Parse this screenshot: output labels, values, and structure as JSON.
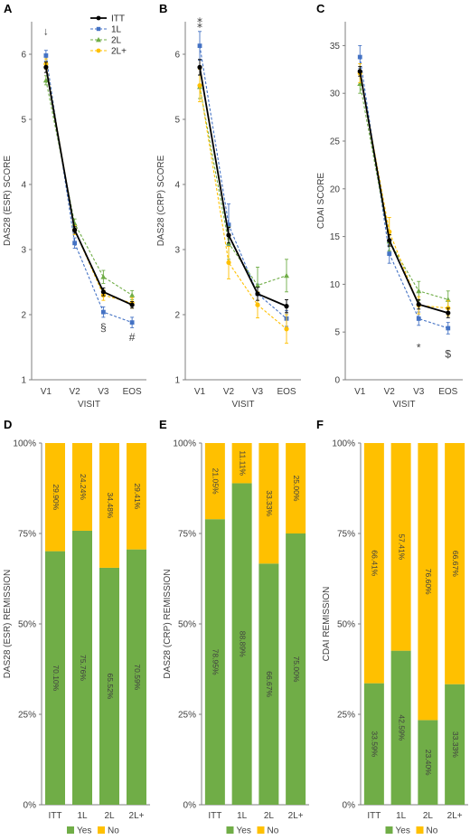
{
  "figure": {
    "panels_top": [
      "A",
      "B",
      "C"
    ],
    "panels_bottom": [
      "D",
      "E",
      "F"
    ]
  },
  "chart_data": [
    {
      "id": "A",
      "type": "line",
      "title": "",
      "xlabel": "VISIT",
      "ylabel": "DAS28 (ESR) SCORE",
      "categories": [
        "V1",
        "V2",
        "V3",
        "EOS"
      ],
      "ylim": [
        1,
        6.5
      ],
      "yticks": [
        "1",
        "2",
        "3",
        "4",
        "5",
        "6"
      ],
      "grid": false,
      "legend": "top-right",
      "series": [
        {
          "name": "ITT",
          "values": [
            5.8,
            3.3,
            2.35,
            2.15
          ],
          "err": [
            0.08,
            0.05,
            0.06,
            0.05
          ],
          "color": "#000000",
          "dash": "",
          "marker": "circle"
        },
        {
          "name": "1L",
          "values": [
            5.98,
            3.1,
            2.04,
            1.88
          ],
          "err": [
            0.08,
            0.08,
            0.08,
            0.08
          ],
          "color": "#4472C4",
          "dash": "3,2",
          "marker": "square"
        },
        {
          "name": "2L",
          "values": [
            5.6,
            3.4,
            2.58,
            2.3
          ],
          "err": [
            0.07,
            0.07,
            0.1,
            0.07
          ],
          "color": "#70AD47",
          "dash": "3,2",
          "marker": "triangle"
        },
        {
          "name": "2L+",
          "values": [
            5.85,
            3.3,
            2.3,
            2.18
          ],
          "err": [
            0.08,
            0.07,
            0.08,
            0.08
          ],
          "color": "#FFC000",
          "dash": "3,2",
          "marker": "circle"
        }
      ],
      "annotations": [
        {
          "text": "↓",
          "cat": 0,
          "y": 6.3
        },
        {
          "text": "§",
          "cat": 2,
          "y": 1.75
        },
        {
          "text": "#",
          "cat": 3,
          "y": 1.6
        }
      ]
    },
    {
      "id": "B",
      "type": "line",
      "title": "",
      "xlabel": "VISIT",
      "ylabel": "DAS28 (CRP) SCORE",
      "categories": [
        "V1",
        "V2",
        "V3",
        "EOS"
      ],
      "ylim": [
        1,
        6.5
      ],
      "yticks": [
        "1",
        "2",
        "3",
        "4",
        "5",
        "6"
      ],
      "grid": false,
      "series": [
        {
          "name": "ITT",
          "values": [
            5.8,
            3.22,
            2.32,
            2.13
          ],
          "err": [
            0.12,
            0.12,
            0.1,
            0.1
          ],
          "color": "#000000",
          "dash": "",
          "marker": "circle"
        },
        {
          "name": "1L",
          "values": [
            6.13,
            3.38,
            2.32,
            1.94
          ],
          "err": [
            0.22,
            0.32,
            0.15,
            0.12
          ],
          "color": "#4472C4",
          "dash": "3,2",
          "marker": "square"
        },
        {
          "name": "2L",
          "values": [
            5.5,
            3.1,
            2.45,
            2.6
          ],
          "err": [
            0.18,
            0.25,
            0.28,
            0.25
          ],
          "color": "#70AD47",
          "dash": "3,2",
          "marker": "triangle"
        },
        {
          "name": "2L+",
          "values": [
            5.52,
            2.8,
            2.15,
            1.78
          ],
          "err": [
            0.25,
            0.25,
            0.2,
            0.22
          ],
          "color": "#FFC000",
          "dash": "3,2",
          "marker": "circle"
        }
      ],
      "annotations": [
        {
          "text": "⁑",
          "cat": 0,
          "y": 6.4
        }
      ]
    },
    {
      "id": "C",
      "type": "line",
      "title": "",
      "xlabel": "VISIT",
      "ylabel": "CDAI SCORE",
      "categories": [
        "V1",
        "V2",
        "V3",
        "EOS"
      ],
      "ylim": [
        0,
        37.5
      ],
      "yticks": [
        "0",
        "5",
        "10",
        "15",
        "20",
        "25",
        "30",
        "35"
      ],
      "grid": false,
      "series": [
        {
          "name": "ITT",
          "values": [
            32.3,
            14.6,
            7.9,
            7.0
          ],
          "err": [
            0.5,
            0.6,
            0.5,
            0.5
          ],
          "color": "#000000",
          "dash": "",
          "marker": "circle"
        },
        {
          "name": "1L",
          "values": [
            33.8,
            13.2,
            6.4,
            5.4
          ],
          "err": [
            1.2,
            1.0,
            0.7,
            0.6
          ],
          "color": "#4472C4",
          "dash": "3,2",
          "marker": "square"
        },
        {
          "name": "2L",
          "values": [
            31.0,
            14.5,
            9.3,
            8.4
          ],
          "err": [
            1.0,
            1.0,
            1.0,
            0.9
          ],
          "color": "#70AD47",
          "dash": "3,2",
          "marker": "triangle"
        },
        {
          "name": "2L+",
          "values": [
            32.1,
            15.5,
            7.8,
            7.5
          ],
          "err": [
            1.0,
            1.5,
            0.9,
            0.8
          ],
          "color": "#FFC000",
          "dash": "3,2",
          "marker": "circle"
        }
      ],
      "annotations": [
        {
          "text": "*",
          "cat": 2,
          "y": 3.0
        },
        {
          "text": "$",
          "cat": 3,
          "y": 2.3
        }
      ]
    },
    {
      "id": "D",
      "type": "bar",
      "stacked": true,
      "xlabel": "",
      "ylabel": "DAS28 (ESR) REMISSION",
      "categories": [
        "ITT",
        "1L",
        "2L",
        "2L+"
      ],
      "yticks": [
        "0%",
        "25%",
        "50%",
        "75%",
        "100%"
      ],
      "legend": "bottom",
      "series": [
        {
          "name": "Yes",
          "color": "#70AD47",
          "values": [
            70.1,
            75.76,
            65.52,
            70.59
          ],
          "labels": [
            "70.10%",
            "75.76%",
            "65.52%",
            "70.59%"
          ]
        },
        {
          "name": "No",
          "color": "#FFC000",
          "values": [
            29.9,
            24.24,
            34.48,
            29.41
          ],
          "labels": [
            "29.90%",
            "24.24%",
            "34.48%",
            "29.41%"
          ]
        }
      ]
    },
    {
      "id": "E",
      "type": "bar",
      "stacked": true,
      "xlabel": "",
      "ylabel": "DAS28 (CRP) REMISSION",
      "categories": [
        "ITT",
        "1L",
        "2L",
        "2L+"
      ],
      "yticks": [
        "0%",
        "25%",
        "50%",
        "75%",
        "100%"
      ],
      "legend": "bottom",
      "series": [
        {
          "name": "Yes",
          "color": "#70AD47",
          "values": [
            78.95,
            88.89,
            66.67,
            75.0
          ],
          "labels": [
            "78.95%",
            "88.89%",
            "66.67%",
            "75.00%"
          ]
        },
        {
          "name": "No",
          "color": "#FFC000",
          "values": [
            21.05,
            11.11,
            33.33,
            25.0
          ],
          "labels": [
            "21.05%",
            "11.11%",
            "33.33%",
            "25.00%"
          ]
        }
      ]
    },
    {
      "id": "F",
      "type": "bar",
      "stacked": true,
      "xlabel": "",
      "ylabel": "CDAI REMISSION",
      "categories": [
        "ITT",
        "1L",
        "2L",
        "2L+"
      ],
      "yticks": [
        "0%",
        "25%",
        "50%",
        "75%",
        "100%"
      ],
      "legend": "bottom",
      "series": [
        {
          "name": "Yes",
          "color": "#70AD47",
          "values": [
            33.59,
            42.59,
            23.4,
            33.33
          ],
          "labels": [
            "33.59%",
            "42.59%",
            "23.40%",
            "33.33%"
          ]
        },
        {
          "name": "No",
          "color": "#FFC000",
          "values": [
            66.41,
            57.41,
            76.6,
            66.67
          ],
          "labels": [
            "66.41%",
            "57.41%",
            "76.60%",
            "66.67%"
          ]
        }
      ]
    }
  ]
}
